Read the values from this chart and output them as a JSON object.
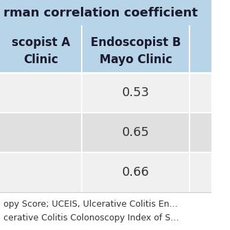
{
  "title_partial": "rman correlation coefficient",
  "header_bg": "#b8d4e8",
  "header_text_color": "#1a1a2e",
  "row_bg_odd": "#f0f0f0",
  "row_bg_even": "#e0e0e0",
  "footer_bg": "#ffffff",
  "col1_header_line1": "scopist A",
  "col1_header_line2": "Clinic",
  "col2_header_line1": "Endoscopist B",
  "col2_header_line2": "Mayo Clinic",
  "col3_header_line1": "",
  "col3_header_line2": "",
  "data_rows": [
    [
      "",
      "0.53",
      ""
    ],
    [
      "",
      "0.65",
      ""
    ],
    [
      "",
      "0.66",
      ""
    ]
  ],
  "footer_line1": "opy Score; UCEIS, Ulcerative Colitis En…",
  "footer_line2": "cerative Colitis Colonoscopy Index of S…",
  "title_bg": "#b8d4e8",
  "title_fontsize": 13,
  "header_fontsize": 12,
  "data_fontsize": 13,
  "footer_fontsize": 9
}
